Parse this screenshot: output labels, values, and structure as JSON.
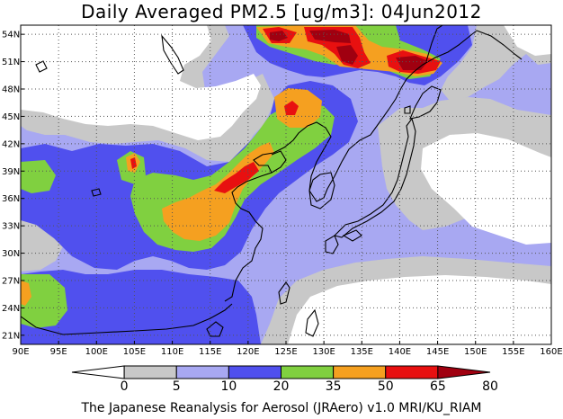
{
  "title": "Daily Averaged PM2.5 [ug/m3]: 04Jun2012",
  "footer": "The Japanese Reanalysis for Aerosol (JRAero) v1.0 MRI/KU_RIAM",
  "map": {
    "lon_range": [
      90,
      160
    ],
    "lat_range": [
      20,
      55
    ],
    "lon_ticks": [
      "90E",
      "95E",
      "100E",
      "105E",
      "110E",
      "115E",
      "120E",
      "125E",
      "130E",
      "135E",
      "140E",
      "145E",
      "150E",
      "155E",
      "160E"
    ],
    "lat_ticks": [
      "54N",
      "51N",
      "48N",
      "45N",
      "42N",
      "39N",
      "36N",
      "33N",
      "30N",
      "27N",
      "24N",
      "21N"
    ],
    "gridlines": true,
    "coastlines": true,
    "variable": "PM2.5",
    "units": "ug/m3"
  },
  "colorbar": {
    "labels": [
      "0",
      "5",
      "10",
      "20",
      "35",
      "50",
      "65",
      "80"
    ],
    "colors": [
      "#ffffff",
      "#c8c8c8",
      "#a8a8f2",
      "#5050ee",
      "#80d040",
      "#f5a020",
      "#e81010",
      "#a00010"
    ],
    "levels": [
      {
        "min": 0,
        "max": 5,
        "color": "#ffffff"
      },
      {
        "min": 5,
        "max": 10,
        "color": "#c8c8c8"
      },
      {
        "min": 10,
        "max": 20,
        "color": "#a8a8f2"
      },
      {
        "min": 20,
        "max": 35,
        "color": "#5050ee"
      },
      {
        "min": 35,
        "max": 50,
        "color": "#80d040"
      },
      {
        "min": 50,
        "max": 65,
        "color": "#f5a020"
      },
      {
        "min": 65,
        "max": 80,
        "color": "#e81010"
      },
      {
        "min": 80,
        "max": null,
        "color": "#a00010"
      }
    ]
  }
}
